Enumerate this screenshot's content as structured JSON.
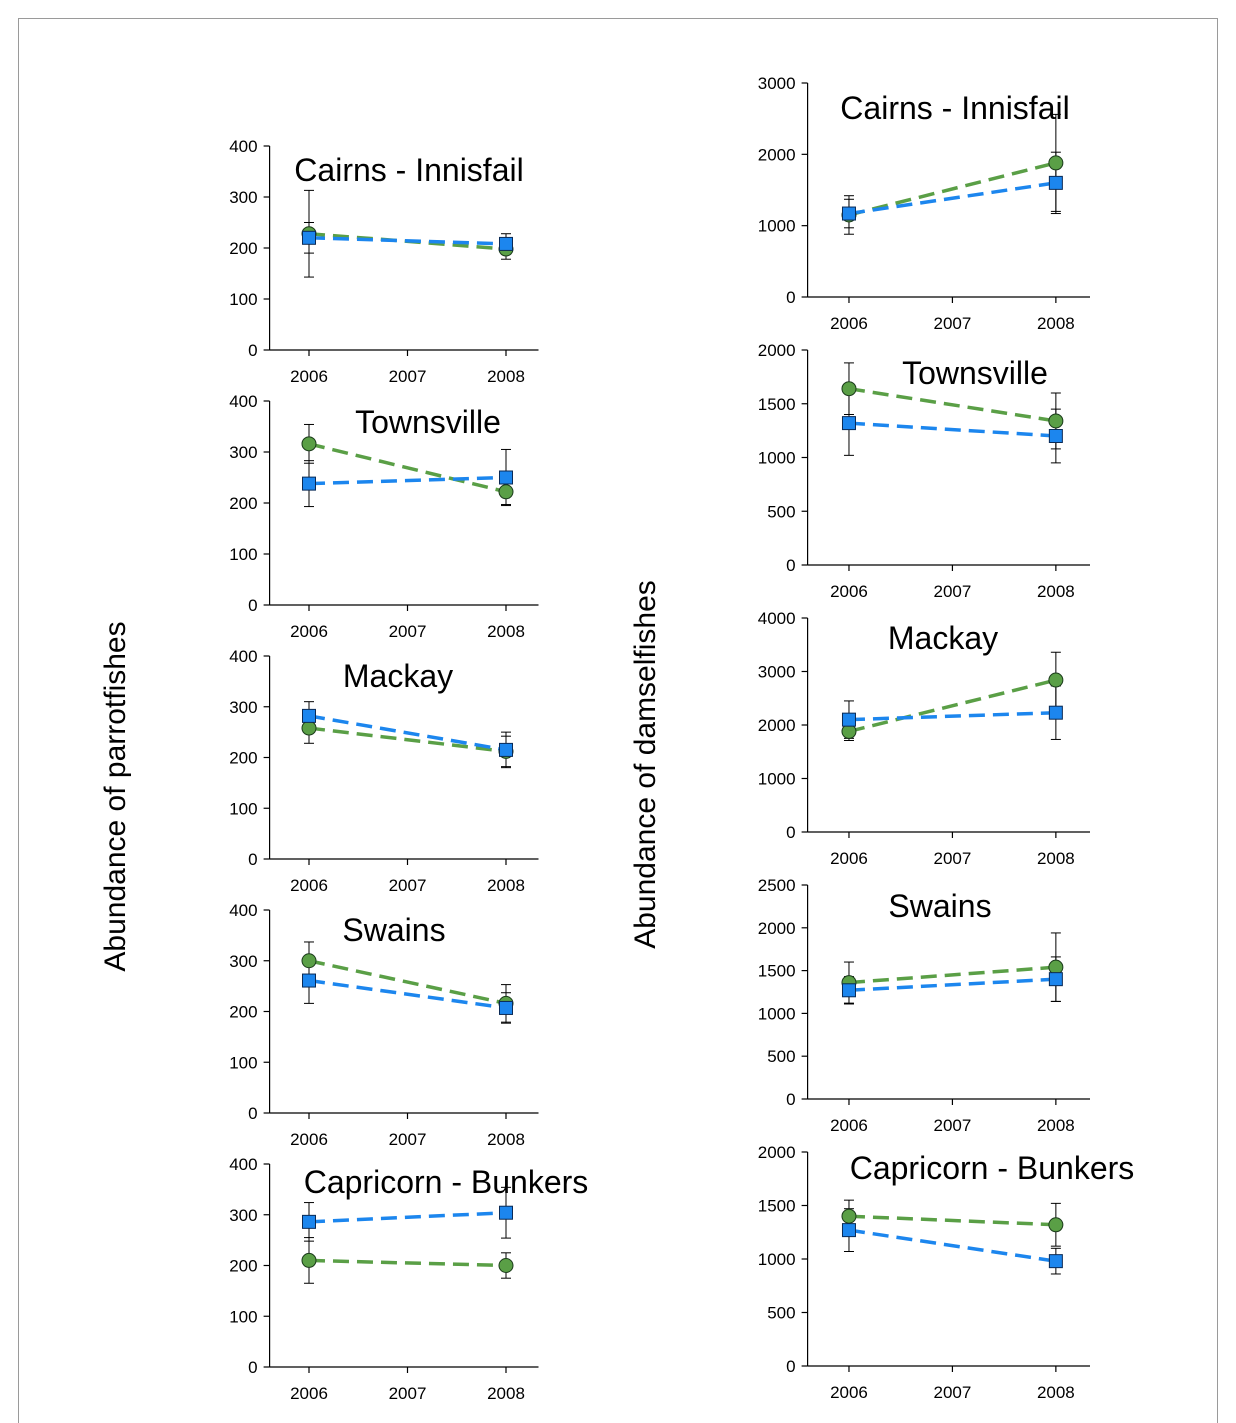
{
  "chart_data": [
    {
      "type": "line",
      "title": "Cairns - Innisfail",
      "x": [
        2006,
        2008
      ],
      "xlim": [
        2005.6,
        2008.33
      ],
      "xticks": [
        2006,
        2007,
        2008
      ],
      "ylim": [
        0,
        400
      ],
      "yticks": [
        0,
        100,
        200,
        300,
        400
      ],
      "series": [
        {
          "color": "#5a9f46",
          "marker": "circle",
          "values": [
            228,
            198
          ],
          "errors": [
            85,
            20
          ]
        },
        {
          "color": "#1c86ee",
          "marker": "square",
          "values": [
            220,
            208
          ],
          "errors": [
            30,
            20
          ]
        }
      ]
    },
    {
      "type": "line",
      "title": "Townsville",
      "x": [
        2006,
        2008
      ],
      "xlim": [
        2005.6,
        2008.33
      ],
      "xticks": [
        2006,
        2007,
        2008
      ],
      "ylim": [
        0,
        400
      ],
      "yticks": [
        0,
        100,
        200,
        300,
        400
      ],
      "series": [
        {
          "color": "#5a9f46",
          "marker": "circle",
          "values": [
            316,
            222
          ],
          "errors": [
            38,
            25
          ]
        },
        {
          "color": "#1c86ee",
          "marker": "square",
          "values": [
            238,
            250
          ],
          "errors": [
            45,
            55
          ]
        }
      ]
    },
    {
      "type": "line",
      "title": "Mackay",
      "ylabel": "Abundance of parrotfishes",
      "x": [
        2006,
        2008
      ],
      "xlim": [
        2005.6,
        2008.33
      ],
      "xticks": [
        2006,
        2007,
        2008
      ],
      "ylim": [
        0,
        400
      ],
      "yticks": [
        0,
        100,
        200,
        300,
        400
      ],
      "series": [
        {
          "color": "#5a9f46",
          "marker": "circle",
          "values": [
            258,
            212
          ],
          "errors": [
            30,
            30
          ]
        },
        {
          "color": "#1c86ee",
          "marker": "square",
          "values": [
            282,
            215
          ],
          "errors": [
            28,
            35
          ]
        }
      ]
    },
    {
      "type": "line",
      "title": "Swains",
      "x": [
        2006,
        2008
      ],
      "xlim": [
        2005.6,
        2008.33
      ],
      "xticks": [
        2006,
        2007,
        2008
      ],
      "ylim": [
        0,
        400
      ],
      "yticks": [
        0,
        100,
        200,
        300,
        400
      ],
      "series": [
        {
          "color": "#5a9f46",
          "marker": "circle",
          "values": [
            300,
            216
          ],
          "errors": [
            37,
            37
          ]
        },
        {
          "color": "#1c86ee",
          "marker": "square",
          "values": [
            261,
            207
          ],
          "errors": [
            45,
            30
          ]
        }
      ]
    },
    {
      "type": "line",
      "title": "Capricorn - Bunkers",
      "x": [
        2006,
        2008
      ],
      "xlim": [
        2005.6,
        2008.33
      ],
      "xticks": [
        2006,
        2007,
        2008
      ],
      "ylim": [
        0,
        400
      ],
      "yticks": [
        0,
        100,
        200,
        300,
        400
      ],
      "series": [
        {
          "color": "#5a9f46",
          "marker": "circle",
          "values": [
            210,
            200
          ],
          "errors": [
            45,
            25
          ]
        },
        {
          "color": "#1c86ee",
          "marker": "square",
          "values": [
            286,
            304
          ],
          "errors": [
            38,
            50
          ]
        }
      ]
    },
    {
      "type": "line",
      "title": "Cairns - Innisfail",
      "x": [
        2006,
        2008
      ],
      "xlim": [
        2005.6,
        2008.33
      ],
      "xticks": [
        2006,
        2007,
        2008
      ],
      "ylim": [
        0,
        3000
      ],
      "yticks": [
        0,
        1000,
        2000,
        3000
      ],
      "series": [
        {
          "color": "#5a9f46",
          "marker": "circle",
          "values": [
            1150,
            1880
          ],
          "errors": [
            270,
            680
          ]
        },
        {
          "color": "#1c86ee",
          "marker": "square",
          "values": [
            1170,
            1600
          ],
          "errors": [
            200,
            430
          ]
        }
      ]
    },
    {
      "type": "line",
      "title": "Townsville",
      "x": [
        2006,
        2008
      ],
      "xlim": [
        2005.6,
        2008.33
      ],
      "xticks": [
        2006,
        2007,
        2008
      ],
      "ylim": [
        0,
        2000
      ],
      "yticks": [
        0,
        500,
        1000,
        1500,
        2000
      ],
      "series": [
        {
          "color": "#5a9f46",
          "marker": "circle",
          "values": [
            1640,
            1340
          ],
          "errors": [
            240,
            260
          ]
        },
        {
          "color": "#1c86ee",
          "marker": "square",
          "values": [
            1320,
            1200
          ],
          "errors": [
            300,
            250
          ]
        }
      ]
    },
    {
      "type": "line",
      "title": "Mackay",
      "ylabel": "Abundance of damselfishes",
      "x": [
        2006,
        2008
      ],
      "xlim": [
        2005.6,
        2008.33
      ],
      "xticks": [
        2006,
        2007,
        2008
      ],
      "ylim": [
        0,
        4000
      ],
      "yticks": [
        0,
        1000,
        2000,
        3000,
        4000
      ],
      "series": [
        {
          "color": "#5a9f46",
          "marker": "circle",
          "values": [
            1880,
            2840
          ],
          "errors": [
            170,
            520
          ]
        },
        {
          "color": "#1c86ee",
          "marker": "square",
          "values": [
            2100,
            2230
          ],
          "errors": [
            350,
            500
          ]
        }
      ]
    },
    {
      "type": "line",
      "title": "Swains",
      "x": [
        2006,
        2008
      ],
      "xlim": [
        2005.6,
        2008.33
      ],
      "xticks": [
        2006,
        2007,
        2008
      ],
      "ylim": [
        0,
        2500
      ],
      "yticks": [
        0,
        500,
        1000,
        1500,
        2000,
        2500
      ],
      "series": [
        {
          "color": "#5a9f46",
          "marker": "circle",
          "values": [
            1360,
            1540
          ],
          "errors": [
            240,
            400
          ]
        },
        {
          "color": "#1c86ee",
          "marker": "square",
          "values": [
            1270,
            1400
          ],
          "errors": [
            160,
            260
          ]
        }
      ]
    },
    {
      "type": "line",
      "title": "Capricorn - Bunkers",
      "x": [
        2006,
        2008
      ],
      "xlim": [
        2005.6,
        2008.33
      ],
      "xticks": [
        2006,
        2007,
        2008
      ],
      "ylim": [
        0,
        2000
      ],
      "yticks": [
        0,
        500,
        1000,
        1500,
        2000
      ],
      "series": [
        {
          "color": "#5a9f46",
          "marker": "circle",
          "values": [
            1400,
            1320
          ],
          "errors": [
            150,
            200
          ]
        },
        {
          "color": "#1c86ee",
          "marker": "square",
          "values": [
            1270,
            980
          ],
          "errors": [
            200,
            120
          ]
        }
      ]
    }
  ]
}
